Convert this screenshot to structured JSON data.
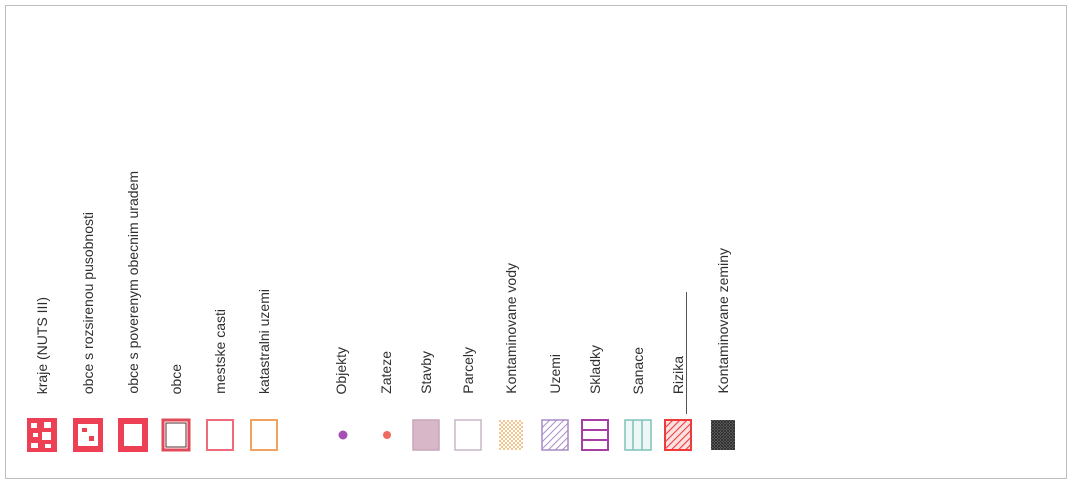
{
  "legend": {
    "admin_units": [
      {
        "label": "kraje (NUTS III)",
        "symbol": "kraje-icon",
        "color": "#ee4055"
      },
      {
        "label": "obce s rozsirenou pusobnosti",
        "symbol": "orp-icon",
        "color": "#ee4055"
      },
      {
        "label": "obce s poverenym obecnim uradem",
        "symbol": "pou-icon",
        "color": "#ee4055"
      },
      {
        "label": "obce",
        "symbol": "obce-icon",
        "color": "#e04a5a"
      },
      {
        "label": "mestske casti",
        "symbol": "mestske-casti-icon",
        "color": "#ef6a7a"
      },
      {
        "label": "katastralni uzemi",
        "symbol": "katastralni-uzemi-icon",
        "color": "#f2a260"
      }
    ],
    "layers": [
      {
        "label": "Objekty",
        "symbol": "objekty-dot-icon",
        "color": "#a64fb5"
      },
      {
        "label": "Zateze",
        "symbol": "zateze-dot-icon",
        "color": "#ef6b60"
      },
      {
        "label": "Stavby",
        "symbol": "stavby-fill-icon",
        "color": "#d8b7c9"
      },
      {
        "label": "Parcely",
        "symbol": "parcely-outline-icon",
        "color": "#c9b7c7"
      },
      {
        "label": "Kontaminovane vody",
        "symbol": "kontaminovane-vody-icon",
        "color": "#f4c58c"
      },
      {
        "label": "Uzemi",
        "symbol": "uzemi-hatch-icon",
        "color": "#a78ac6"
      },
      {
        "label": "Skladky",
        "symbol": "skladky-icon",
        "color": "#a63fa4"
      },
      {
        "label": "Sanace",
        "symbol": "sanace-icon",
        "color": "#7cc3b9"
      },
      {
        "label": "Rizika",
        "symbol": "rizika-hatch-icon",
        "color": "#ee3a3a"
      },
      {
        "label": "Kontaminovane zeminy",
        "symbol": "kontaminovane-zeminy-icon",
        "color": "#4a4a4a"
      }
    ]
  }
}
